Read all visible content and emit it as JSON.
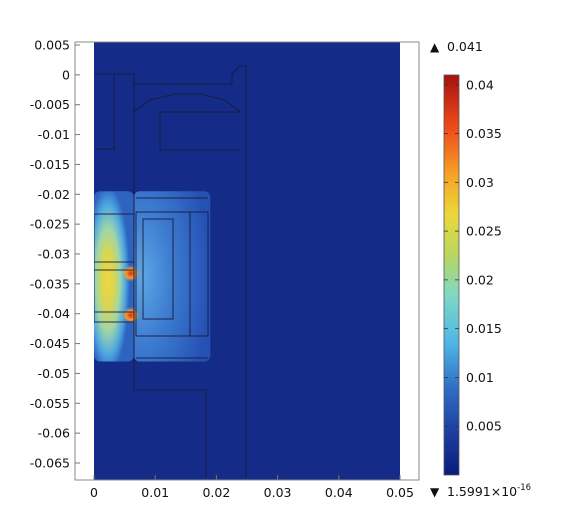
{
  "chart_data": {
    "type": "heatmap",
    "title": "",
    "xlabel": "",
    "ylabel": "",
    "xlim": [
      -0.0005,
      0.0512
    ],
    "ylim": [
      -0.068,
      0.0055
    ],
    "x_ticks": [
      0,
      0.01,
      0.02,
      0.03,
      0.04,
      0.05
    ],
    "x_tick_labels": [
      "0",
      "0.01",
      "0.02",
      "0.03",
      "0.04",
      "0.05"
    ],
    "y_ticks": [
      0.005,
      0,
      -0.005,
      -0.01,
      -0.015,
      -0.02,
      -0.025,
      -0.03,
      -0.035,
      -0.04,
      -0.045,
      -0.05,
      -0.055,
      -0.06,
      -0.065
    ],
    "y_tick_labels": [
      "0.005",
      "0",
      "-0.005",
      "-0.01",
      "-0.015",
      "-0.02",
      "-0.025",
      "-0.03",
      "-0.035",
      "-0.04",
      "-0.045",
      "-0.05",
      "-0.055",
      "-0.06",
      "-0.065"
    ],
    "colorbar": {
      "colormap": "rainbow",
      "min": 1.5991e-16,
      "max": 0.041,
      "ticks": [
        0.005,
        0.01,
        0.015,
        0.02,
        0.025,
        0.03,
        0.035,
        0.04
      ],
      "tick_labels": [
        "0.005",
        "0.01",
        "0.015",
        "0.02",
        "0.025",
        "0.03",
        "0.035",
        "0.04"
      ],
      "max_label": "0.041",
      "min_label_base": "1.5991×10",
      "min_label_exp": "-16",
      "max_marker": "▲",
      "min_marker": "▼"
    },
    "field_regions": [
      {
        "name": "left-field-region",
        "x": [
          0,
          0.0065
        ],
        "y": [
          -0.048,
          -0.0195
        ],
        "peak": 0.026
      },
      {
        "name": "hot-spot-upper",
        "x": [
          0.0055,
          0.0065
        ],
        "y": [
          -0.034,
          -0.0325
        ],
        "peak": 0.036
      },
      {
        "name": "hot-spot-lower",
        "x": [
          0.0055,
          0.0065
        ],
        "y": [
          -0.041,
          -0.0395
        ],
        "peak": 0.038
      },
      {
        "name": "right-field-region",
        "x": [
          0.0065,
          0.019
        ],
        "y": [
          -0.048,
          -0.0195
        ],
        "peak": 0.01
      }
    ],
    "background_value": 0.0005
  }
}
